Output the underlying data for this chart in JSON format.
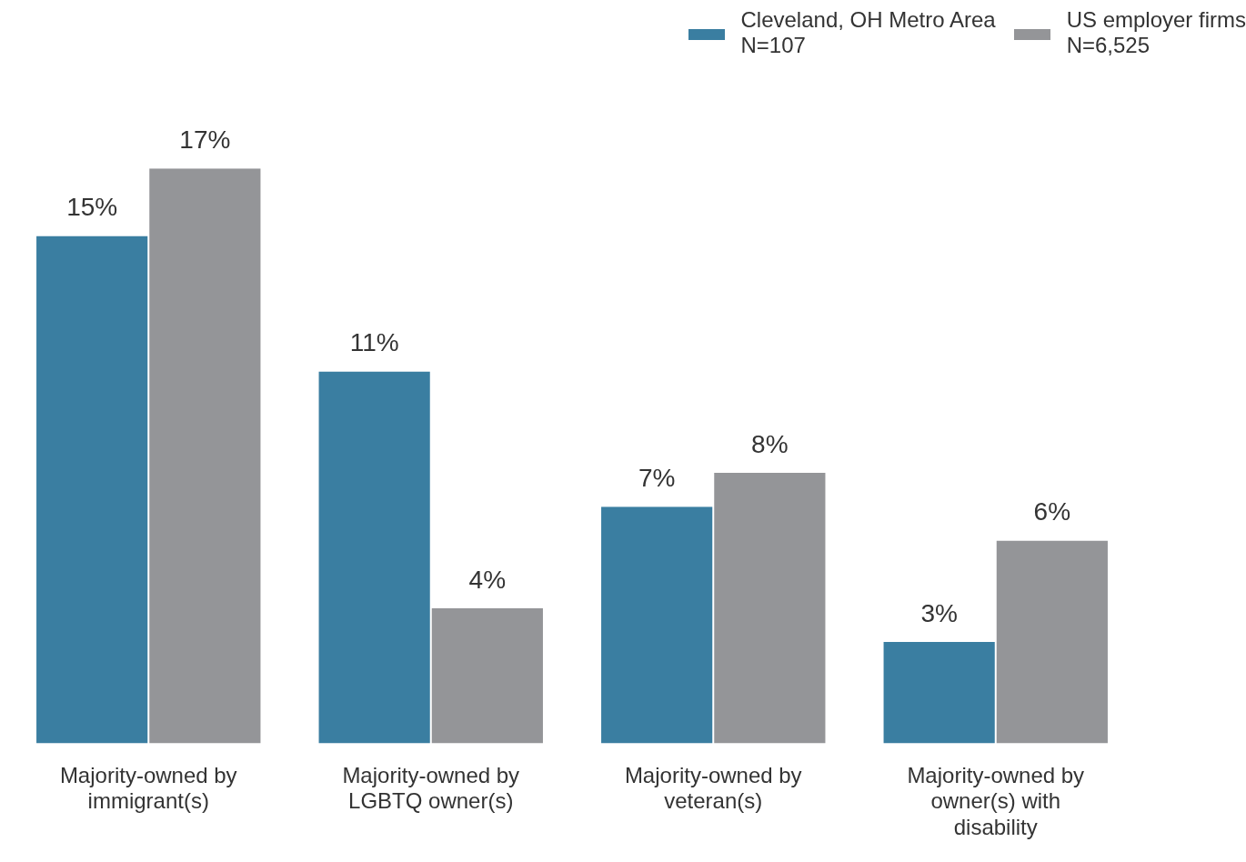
{
  "chart_data": {
    "type": "bar",
    "categories": [
      "Majority-owned by immigrant(s)",
      "Majority-owned by LGBTQ owner(s)",
      "Majority-owned by veteran(s)",
      "Majority-owned by owner(s) with disability"
    ],
    "series": [
      {
        "name": "Cleveland, OH Metro Area\nN=107",
        "color": "#3a7ea1",
        "values": [
          15,
          11,
          7,
          3
        ],
        "value_labels": [
          "15%",
          "11%",
          "7%",
          "3%"
        ]
      },
      {
        "name": "US employer firms\nN=6,525",
        "color": "#949598",
        "values": [
          17,
          4,
          8,
          6
        ],
        "value_labels": [
          "17%",
          "4%",
          "8%",
          "6%"
        ]
      }
    ],
    "legend": "top right",
    "grid": false
  }
}
